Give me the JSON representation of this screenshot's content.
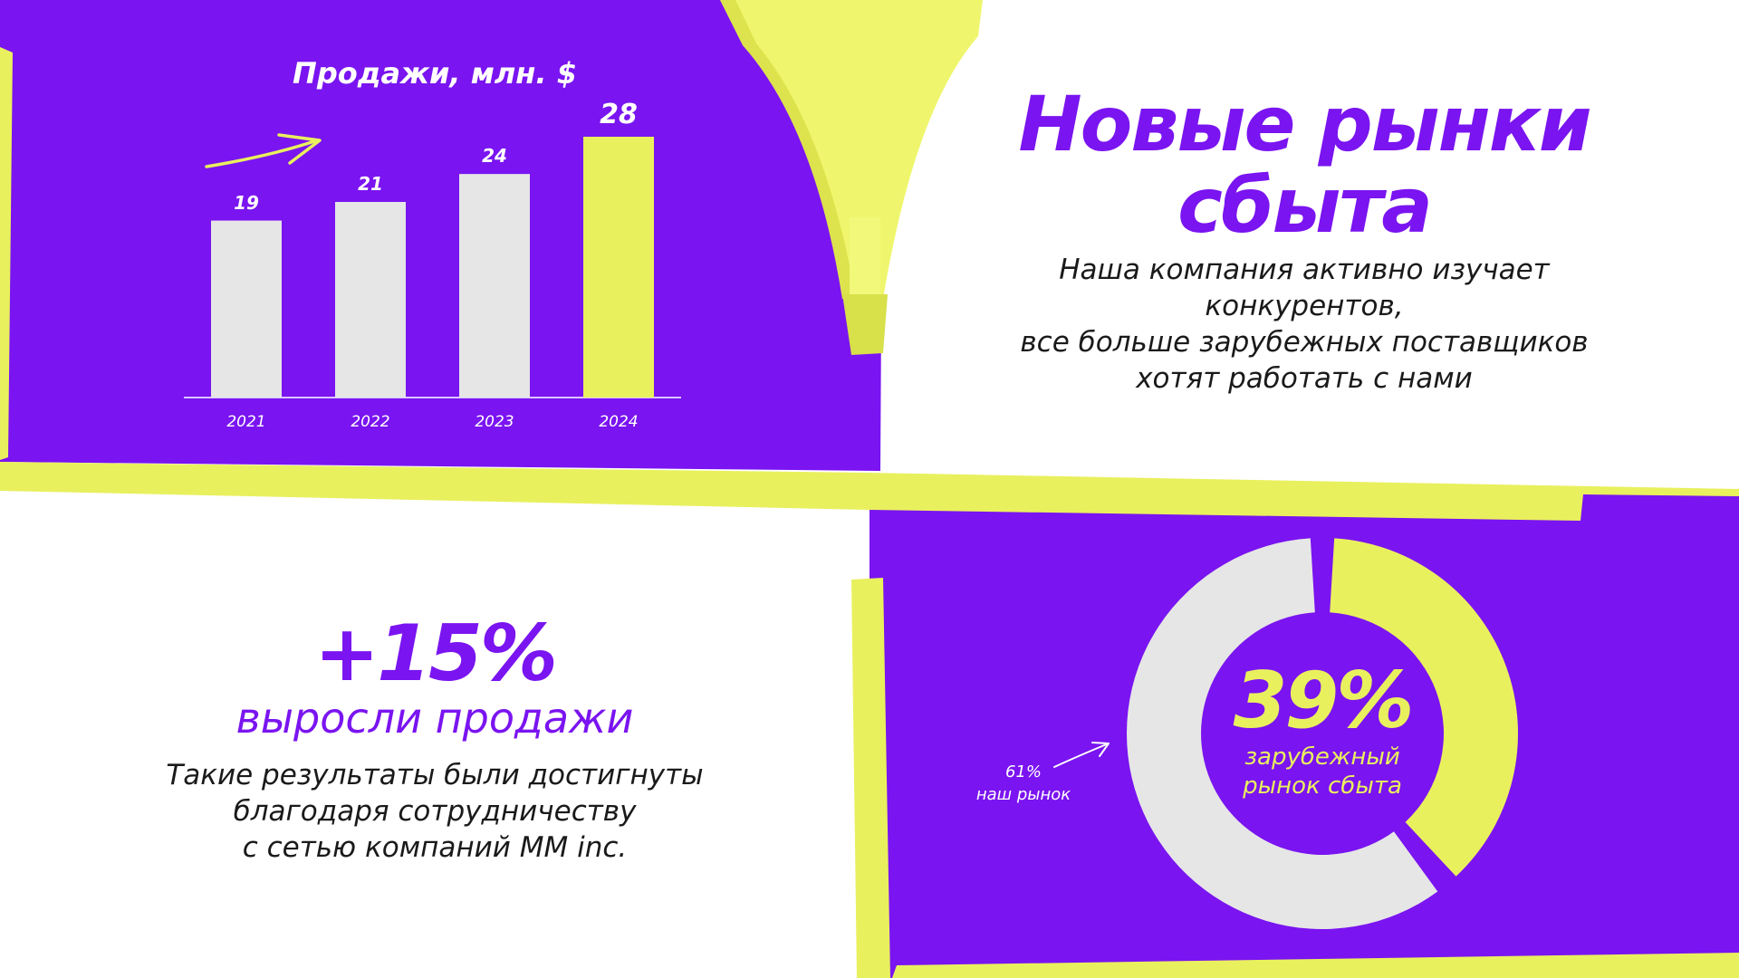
{
  "colors": {
    "purple": "#7a14f0",
    "yellow": "#e9f05e",
    "light_gray": "#e6e6e6",
    "white": "#ffffff"
  },
  "headline": "Новые рынки сбыта",
  "intro_lines": [
    "Наша компания активно изучает",
    "конкурентов,",
    "все больше зарубежных поставщиков",
    "хотят работать с нами"
  ],
  "growth": {
    "value": "+15%",
    "label": "выросли продажи",
    "text_lines": [
      "Такие результаты были достигнуты",
      "благодаря сотрудничеству",
      "с сетью компаний ММ inc."
    ]
  },
  "icons": [
    "trend-arrow-icon",
    "pointer-arrow-icon",
    "highlighter-marker-illustration"
  ],
  "chart_data": [
    {
      "type": "bar",
      "title": "Продажи, млн. $",
      "categories": [
        "2021",
        "2022",
        "2023",
        "2024"
      ],
      "values": [
        19,
        21,
        24,
        28
      ],
      "value_labels": [
        "19",
        "21",
        "24",
        "28"
      ],
      "highlighted_category": "2024",
      "ylim": [
        0,
        28
      ],
      "grid": false,
      "legend": "none"
    },
    {
      "type": "pie",
      "style": "donut",
      "slices": [
        {
          "label_lines": [
            "зарубежный",
            "рынок сбыта"
          ],
          "value": 39,
          "value_label": "39%",
          "color": "#e9f05e"
        },
        {
          "label_lines": [
            "наш рынок"
          ],
          "value": 61,
          "value_label": "61%",
          "color": "#e6e6e6"
        }
      ],
      "legend": "none"
    }
  ]
}
